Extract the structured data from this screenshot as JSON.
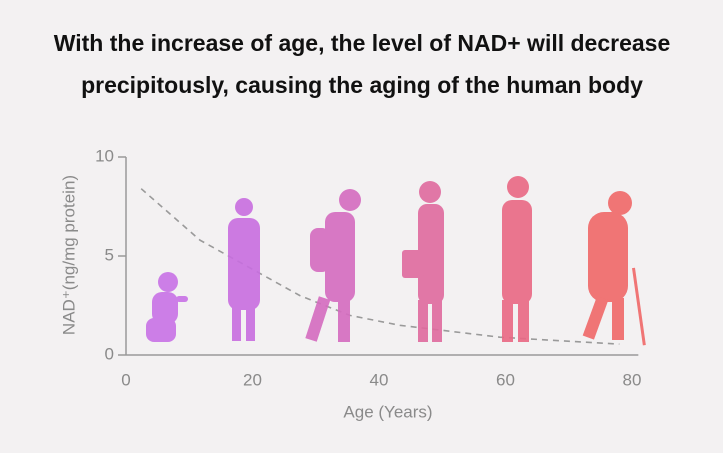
{
  "chart_data": {
    "type": "line",
    "title": [
      "With the increase of age, the level of NAD+ will decrease",
      "precipitously, causing the aging of the human body"
    ],
    "x_label": "Age (Years)",
    "y_label": "NAD⁺(ng/mg protein)",
    "x": [
      2.4,
      11.7,
      19.6,
      27.5,
      35.4,
      43.3,
      51.2,
      59.1,
      67,
      78
    ],
    "series": [
      {
        "color": "#9a9a9a",
        "values": [
          8.4,
          5.8,
          4.4,
          3.0,
          2.0,
          1.5,
          1.2,
          0.9,
          0.75,
          0.55
        ]
      }
    ],
    "xlim": [
      0,
      81
    ],
    "xticks": [
      0,
      20,
      40,
      60,
      80
    ],
    "ylim": [
      0,
      10
    ],
    "yticks": [
      0,
      5,
      10
    ]
  }
}
